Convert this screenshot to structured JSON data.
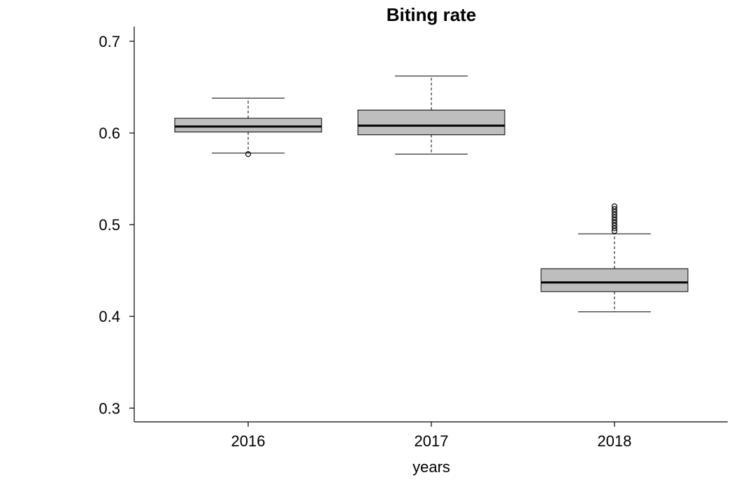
{
  "chart_data": {
    "type": "box",
    "title": "Biting rate",
    "xlabel": "years",
    "ylabel": "",
    "categories": [
      "2016",
      "2017",
      "2018"
    ],
    "ylim": [
      0.285,
      0.716
    ],
    "yticks": [
      0.3,
      0.4,
      0.5,
      0.6,
      0.7
    ],
    "ytick_labels": [
      "0.3",
      "0.4",
      "0.5",
      "0.6",
      "0.7"
    ],
    "box_fill": "#bebebe",
    "grid": false,
    "boxes": [
      {
        "category": "2016",
        "whisker_low": 0.578,
        "q1": 0.601,
        "median": 0.607,
        "q3": 0.616,
        "whisker_high": 0.638,
        "outliers": [
          0.577
        ]
      },
      {
        "category": "2017",
        "whisker_low": 0.577,
        "q1": 0.598,
        "median": 0.608,
        "q3": 0.625,
        "whisker_high": 0.662,
        "outliers": []
      },
      {
        "category": "2018",
        "whisker_low": 0.405,
        "q1": 0.427,
        "median": 0.437,
        "q3": 0.452,
        "whisker_high": 0.49,
        "outliers": [
          0.493,
          0.496,
          0.499,
          0.502,
          0.505,
          0.508,
          0.511,
          0.514,
          0.517,
          0.52
        ]
      }
    ]
  }
}
